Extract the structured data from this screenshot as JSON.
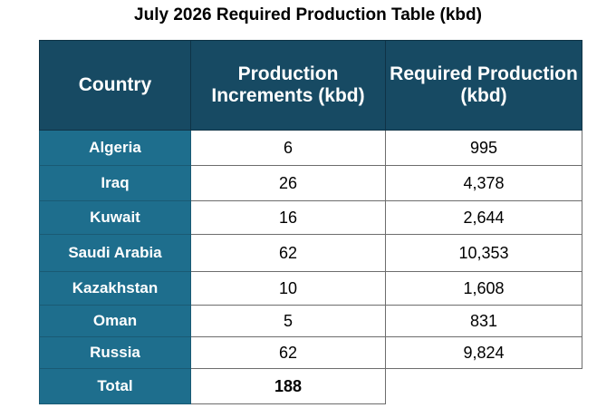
{
  "chart_data": {
    "type": "table",
    "title": "July 2026 Required Production Table (kbd)",
    "columns": [
      "Country",
      "Production Increments (kbd)",
      "Required Production (kbd)"
    ],
    "rows": [
      {
        "country": "Algeria",
        "increment": "6",
        "required": "995"
      },
      {
        "country": "Iraq",
        "increment": "26",
        "required": "4,378"
      },
      {
        "country": "Kuwait",
        "increment": "16",
        "required": "2,644"
      },
      {
        "country": "Saudi Arabia",
        "increment": "62",
        "required": "10,353"
      },
      {
        "country": "Kazakhstan",
        "increment": "10",
        "required": "1,608"
      },
      {
        "country": "Oman",
        "increment": "5",
        "required": "831"
      },
      {
        "country": "Russia",
        "increment": "62",
        "required": "9,824"
      }
    ],
    "total": {
      "label": "Total",
      "increment": "188",
      "required": ""
    }
  },
  "colors": {
    "header_bg": "#174a63",
    "country_bg": "#1e6e8d",
    "header_text": "#ffffff",
    "cell_border": "#6d6d6d"
  }
}
